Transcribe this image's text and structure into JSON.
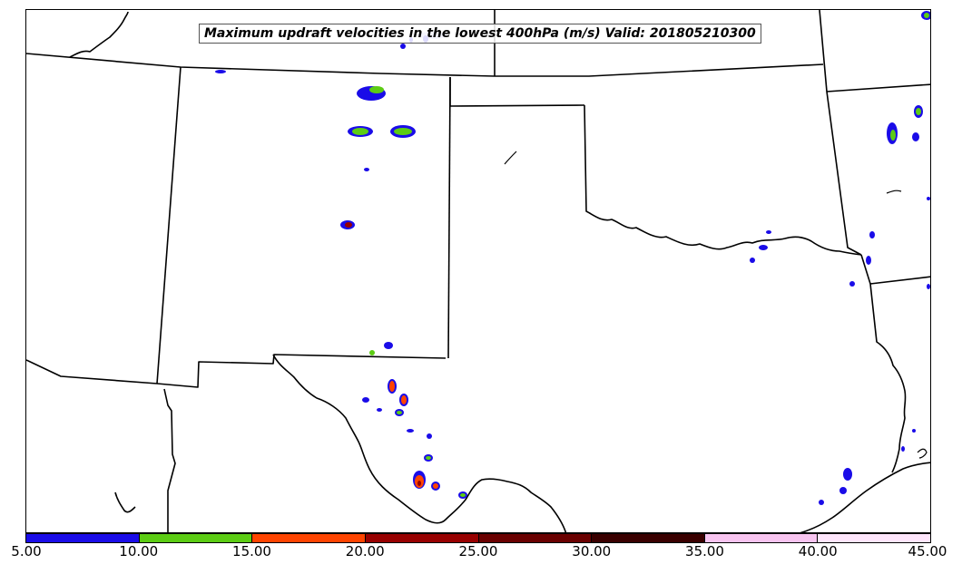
{
  "title": "Maximum updraft velocities in the lowest 400hPa (m/s) Valid: 201805210300",
  "colorbar": {
    "ticks": [
      "5.00",
      "10.00",
      "15.00",
      "20.00",
      "25.00",
      "30.00",
      "35.00",
      "40.00",
      "45.00"
    ],
    "colors": [
      "#1a0ce8",
      "#5ccc14",
      "#ff4400",
      "#980000",
      "#6a0000",
      "#3a0000",
      "#f8c4f0",
      "#ffe6fc"
    ]
  },
  "map": {
    "boundary_color": "#000000",
    "background": "#ffffff",
    "field_colors": {
      "low": "#1a0ce8",
      "mid": "#5ccc14",
      "high": "#ff4400",
      "very_high": "#980000"
    }
  }
}
